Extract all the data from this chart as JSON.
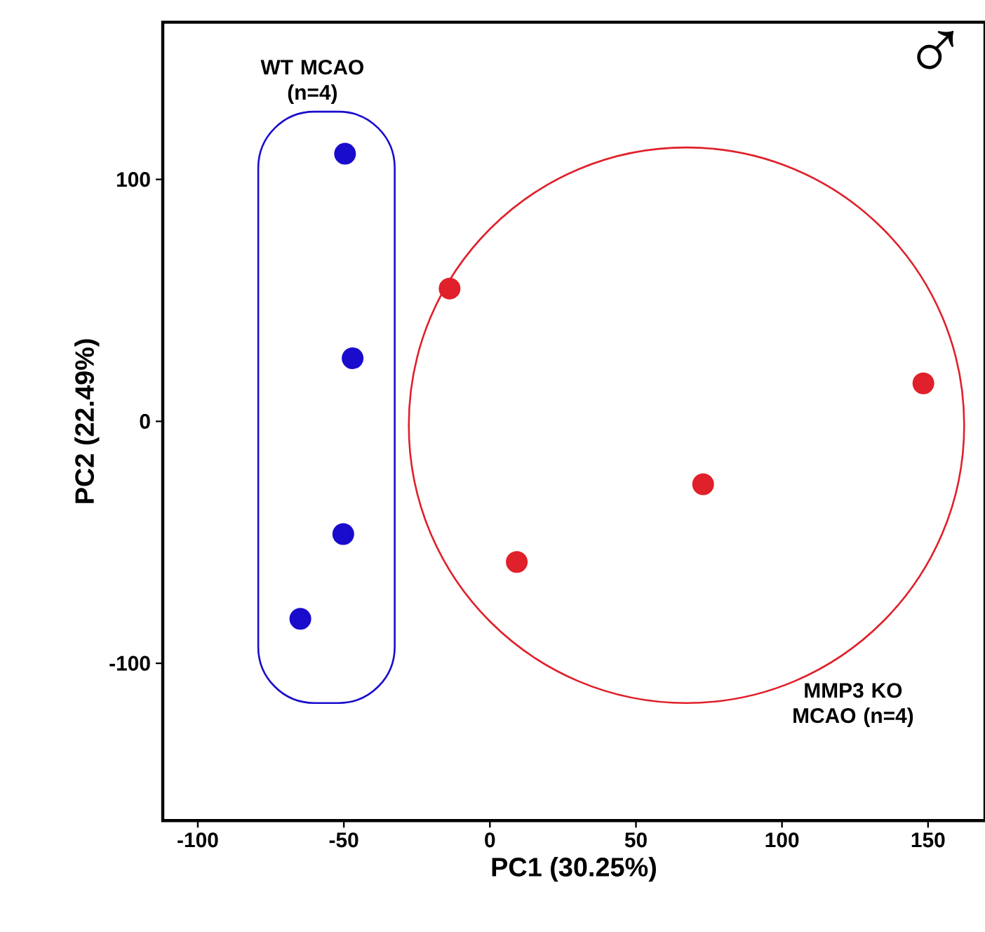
{
  "chart_data": {
    "type": "scatter",
    "xlabel": "PC1 (30.25%)",
    "ylabel": "PC2 (22.49%)",
    "annotations": [
      "WT MCAO (n=4)",
      "MMP3 KO MCAO (n=4)",
      "♂"
    ],
    "xlim": [
      -112,
      169.5
    ],
    "ylim": [
      -165,
      165
    ],
    "xticks": [
      -100,
      -50,
      0,
      50,
      100,
      150
    ],
    "yticks": [
      -100,
      0,
      100
    ],
    "legend": false,
    "marker": "circle",
    "series": [
      {
        "color": "#1a0ccc",
        "x": [
          -49.6,
          -47,
          -50.2,
          -64.9
        ],
        "values": [
          110.6,
          26.1,
          -46.6,
          -81.6
        ]
      },
      {
        "color": "#e0202a",
        "x": [
          -13.8,
          9.2,
          73,
          148.4
        ],
        "values": [
          54.9,
          -58.1,
          -26,
          15.7
        ]
      }
    ]
  }
}
